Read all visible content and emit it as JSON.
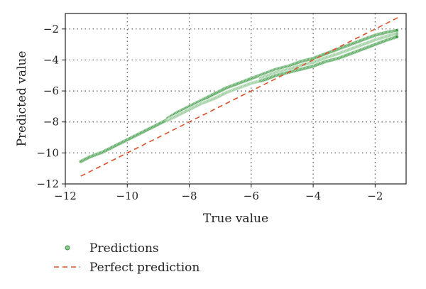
{
  "chart_data": {
    "type": "scatter",
    "xlabel": "True value",
    "ylabel": "Predicted value",
    "xlim": [
      -12,
      -1
    ],
    "ylim": [
      -12,
      -1
    ],
    "xticks": [
      -12,
      -10,
      -8,
      -6,
      -4,
      -2
    ],
    "yticks": [
      -12,
      -10,
      -8,
      -6,
      -4,
      -2
    ],
    "xtick_labels": [
      "−12",
      "−10",
      "−8",
      "−6",
      "−4",
      "−2"
    ],
    "ytick_labels": [
      "−12",
      "−10",
      "−8",
      "−6",
      "−4",
      "−2"
    ],
    "grid": true,
    "legend_position": "bottom-left, below plot",
    "colors": {
      "predictions": "#3d9a45",
      "perfect": "#d9532c",
      "grid": "#555555",
      "frame": "#222222"
    },
    "series": [
      {
        "name": "Predictions",
        "kind": "scatter",
        "x": [
          -11.5,
          -11.2,
          -10.8,
          -10.4,
          -10.0,
          -9.6,
          -9.2,
          -8.8,
          -8.4,
          -8.0,
          -7.6,
          -7.2,
          -6.8,
          -6.4,
          -6.0,
          -5.6,
          -5.2,
          -4.8,
          -4.4,
          -4.0,
          -3.6,
          -3.2,
          -2.8,
          -2.4,
          -2.0,
          -1.6,
          -1.3
        ],
        "y": [
          -10.6,
          -10.3,
          -10.0,
          -9.6,
          -9.2,
          -8.8,
          -8.4,
          -8.0,
          -7.6,
          -7.2,
          -6.8,
          -6.5,
          -6.1,
          -5.8,
          -5.5,
          -5.2,
          -4.9,
          -4.7,
          -4.4,
          -4.2,
          -3.9,
          -3.6,
          -3.3,
          -3.0,
          -2.7,
          -2.4,
          -2.2
        ],
        "upper_y": [
          -10.5,
          -10.2,
          -9.9,
          -9.5,
          -9.1,
          -8.7,
          -8.3,
          -7.9,
          -7.4,
          -7.0,
          -6.6,
          -6.2,
          -5.8,
          -5.5,
          -5.2,
          -4.9,
          -4.6,
          -4.4,
          -4.1,
          -3.9,
          -3.6,
          -3.3,
          -3.0,
          -2.7,
          -2.4,
          -2.2,
          -2.1
        ],
        "lower_y": [
          -10.6,
          -10.3,
          -10.0,
          -9.6,
          -9.2,
          -8.8,
          -8.4,
          -8.0,
          -7.6,
          -7.2,
          -6.8,
          -6.5,
          -6.1,
          -5.8,
          -5.5,
          -5.3,
          -5.0,
          -4.8,
          -4.6,
          -4.4,
          -4.1,
          -3.9,
          -3.6,
          -3.3,
          -3.0,
          -2.7,
          -2.5
        ]
      },
      {
        "name": "Perfect prediction",
        "kind": "line",
        "x": [
          -11.5,
          -1.2
        ],
        "y": [
          -11.5,
          -1.2
        ]
      }
    ]
  }
}
